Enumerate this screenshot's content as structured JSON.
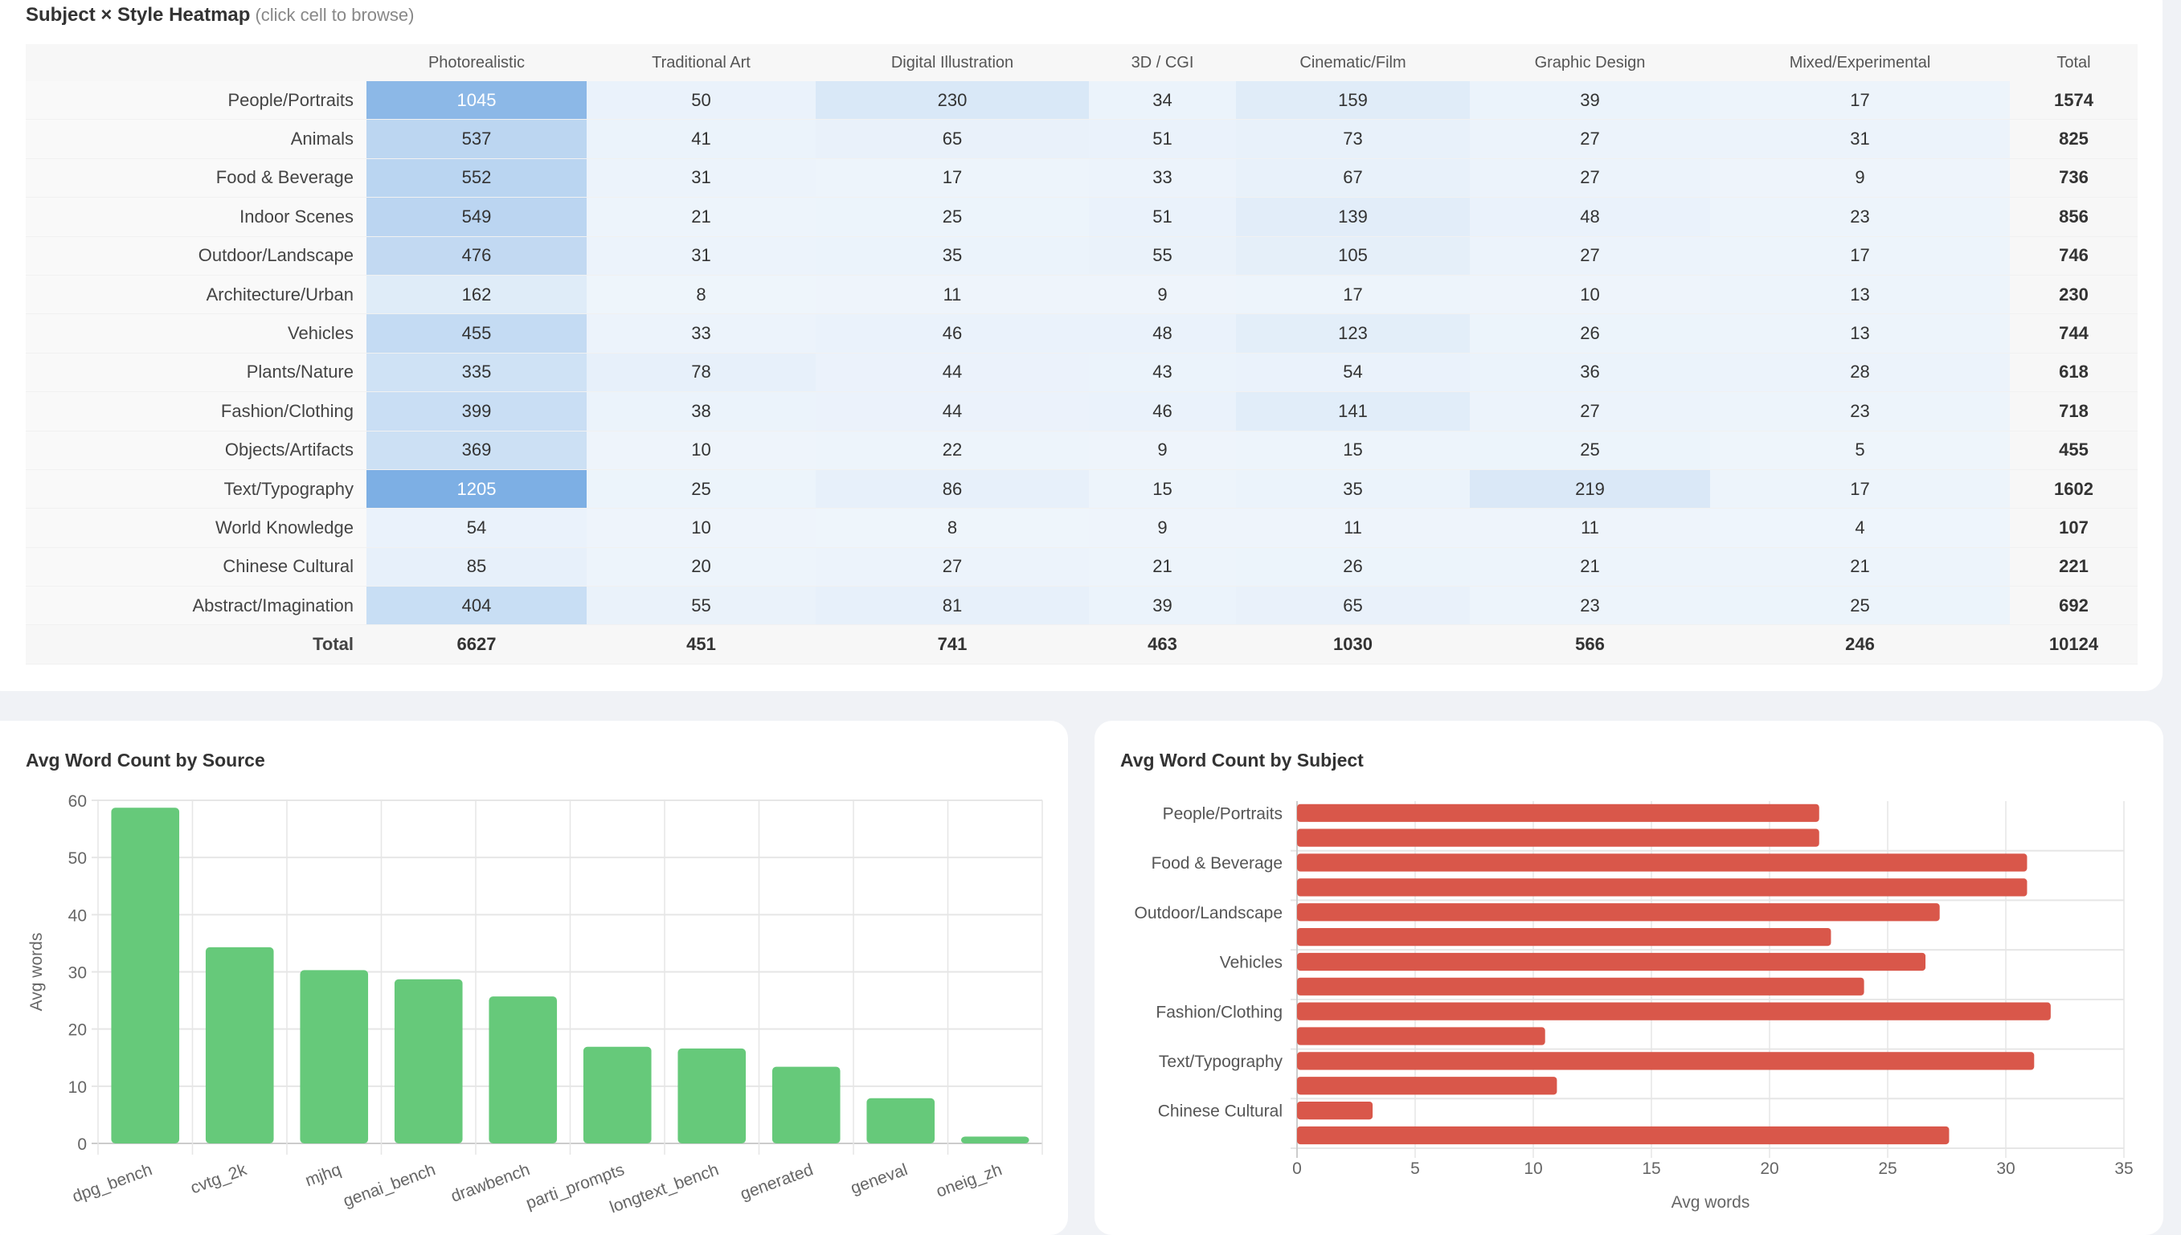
{
  "heatmap": {
    "title": "Subject × Style Heatmap",
    "hint": "(click cell to browse)",
    "columns": [
      "Photorealistic",
      "Traditional Art",
      "Digital Illustration",
      "3D / CGI",
      "Cinematic/Film",
      "Graphic Design",
      "Mixed/Experimental",
      "Total"
    ],
    "rows": [
      {
        "label": "People/Portraits",
        "values": [
          1045,
          50,
          230,
          34,
          159,
          39,
          17
        ],
        "total": 1574
      },
      {
        "label": "Animals",
        "values": [
          537,
          41,
          65,
          51,
          73,
          27,
          31
        ],
        "total": 825
      },
      {
        "label": "Food & Beverage",
        "values": [
          552,
          31,
          17,
          33,
          67,
          27,
          9
        ],
        "total": 736
      },
      {
        "label": "Indoor Scenes",
        "values": [
          549,
          21,
          25,
          51,
          139,
          48,
          23
        ],
        "total": 856
      },
      {
        "label": "Outdoor/Landscape",
        "values": [
          476,
          31,
          35,
          55,
          105,
          27,
          17
        ],
        "total": 746
      },
      {
        "label": "Architecture/Urban",
        "values": [
          162,
          8,
          11,
          9,
          17,
          10,
          13
        ],
        "total": 230
      },
      {
        "label": "Vehicles",
        "values": [
          455,
          33,
          46,
          48,
          123,
          26,
          13
        ],
        "total": 744
      },
      {
        "label": "Plants/Nature",
        "values": [
          335,
          78,
          44,
          43,
          54,
          36,
          28
        ],
        "total": 618
      },
      {
        "label": "Fashion/Clothing",
        "values": [
          399,
          38,
          44,
          46,
          141,
          27,
          23
        ],
        "total": 718
      },
      {
        "label": "Objects/Artifacts",
        "values": [
          369,
          10,
          22,
          9,
          15,
          25,
          5
        ],
        "total": 455
      },
      {
        "label": "Text/Typography",
        "values": [
          1205,
          25,
          86,
          15,
          35,
          219,
          17
        ],
        "total": 1602
      },
      {
        "label": "World Knowledge",
        "values": [
          54,
          10,
          8,
          9,
          11,
          11,
          4
        ],
        "total": 107
      },
      {
        "label": "Chinese Cultural",
        "values": [
          85,
          20,
          27,
          21,
          26,
          21,
          21
        ],
        "total": 221
      },
      {
        "label": "Abstract/Imagination",
        "values": [
          404,
          55,
          81,
          39,
          65,
          23,
          25
        ],
        "total": 692
      }
    ],
    "total_row": {
      "label": "Total",
      "values": [
        6627,
        451,
        741,
        463,
        1030,
        566,
        246
      ],
      "total": 10124
    },
    "color": "#4a90d9"
  },
  "chart_data": [
    {
      "type": "bar",
      "title": "Avg Word Count by Source",
      "categories": [
        "dpg_bench",
        "cvtg_2k",
        "mjhq",
        "genai_bench",
        "drawbench",
        "parti_prompts",
        "longtext_bench",
        "generated",
        "geneval",
        "oneig_zh"
      ],
      "values": [
        58.7,
        34.3,
        30.3,
        28.7,
        25.7,
        16.9,
        16.6,
        13.4,
        7.9,
        1.2
      ],
      "xlabel": "",
      "ylabel": "Avg words",
      "ylim": [
        0,
        60
      ],
      "yticks": [
        0,
        10,
        20,
        30,
        40,
        50,
        60
      ],
      "grid": true,
      "color": "#66c97a"
    },
    {
      "type": "bar",
      "orientation": "horizontal",
      "title": "Avg Word Count by Subject",
      "categories": [
        "People/Portraits",
        "",
        "Food & Beverage",
        "",
        "Outdoor/Landscape",
        "",
        "Vehicles",
        "",
        "Fashion/Clothing",
        "",
        "Text/Typography",
        "",
        "Chinese Cultural",
        ""
      ],
      "values": [
        22.1,
        22.1,
        30.9,
        30.9,
        27.2,
        22.6,
        26.6,
        24.0,
        31.9,
        10.5,
        31.2,
        11.0,
        3.2,
        27.6
      ],
      "xlabel": "Avg words",
      "ylabel": "",
      "xlim": [
        0,
        35
      ],
      "xticks": [
        0,
        5,
        10,
        15,
        20,
        25,
        30,
        35
      ],
      "grid": true,
      "color": "#d9574a"
    }
  ]
}
